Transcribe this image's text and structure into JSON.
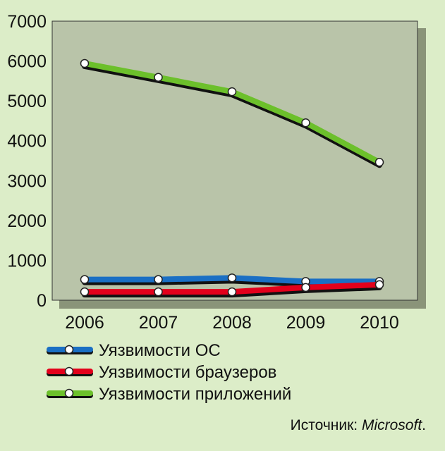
{
  "chart_data": {
    "type": "line",
    "x": [
      "2006",
      "2007",
      "2008",
      "2009",
      "2010"
    ],
    "yticks": [
      "0",
      "1000",
      "2000",
      "3000",
      "4000",
      "5000",
      "6000",
      "7000"
    ],
    "ylim": [
      0,
      7000
    ],
    "grid": false,
    "legend_position": "bottom-left",
    "series": [
      {
        "name": "Уязвимости ОС",
        "color": "#1a6fc4",
        "values": [
          520,
          520,
          560,
          470,
          470
        ]
      },
      {
        "name": "Уязвимости браузеров",
        "color": "#e3001b",
        "values": [
          210,
          210,
          210,
          320,
          390
        ]
      },
      {
        "name": "Уязвимости приложений",
        "color": "#6cc02b",
        "values": [
          5940,
          5590,
          5230,
          4450,
          3460
        ]
      }
    ]
  },
  "source": {
    "prefix": "Источник: ",
    "name": "Microsoft",
    "suffix": "."
  },
  "colors": {
    "background": "#dcedc8",
    "plot_area": "#b9c4a9",
    "shadow": "#8a9479",
    "outline": "#111111"
  }
}
